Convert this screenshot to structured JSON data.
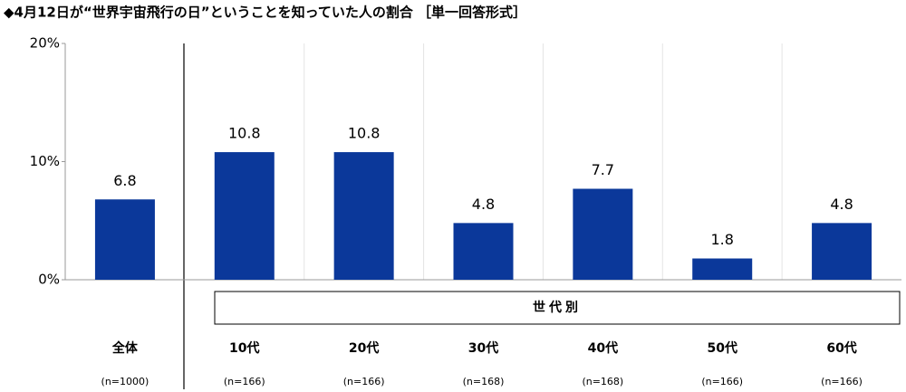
{
  "chart_data": {
    "type": "bar",
    "title": "◆4月12日が“世界宇宙飛行の日”ということを知っていた人の割合 ［単一回答形式］",
    "categories": [
      "全体",
      "10代",
      "20代",
      "30代",
      "40代",
      "50代",
      "60代"
    ],
    "category_notes": [
      "(n=1000)",
      "(n=166)",
      "(n=166)",
      "(n=168)",
      "(n=168)",
      "(n=166)",
      "(n=166)"
    ],
    "group_label": "世代別",
    "values": [
      6.8,
      10.8,
      10.8,
      4.8,
      7.7,
      1.8,
      4.8
    ],
    "color": "#0b389a",
    "ylim": [
      0,
      20
    ],
    "yticks": [
      {
        "value": 0,
        "label": "0%"
      },
      {
        "value": 10,
        "label": "10%"
      },
      {
        "value": 20,
        "label": "20%"
      }
    ],
    "grid": false
  }
}
